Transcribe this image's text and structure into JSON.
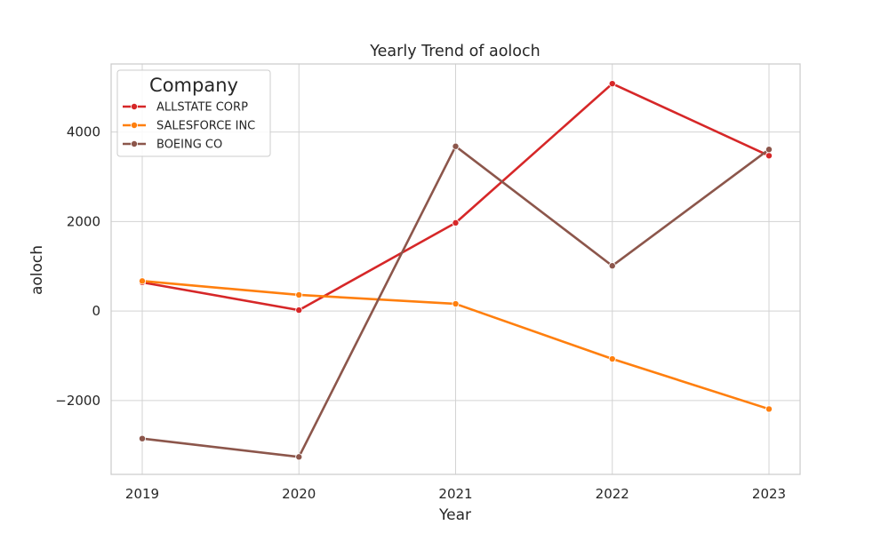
{
  "chart_data": {
    "type": "line",
    "title": "Yearly Trend of aoloch",
    "xlabel": "Year",
    "ylabel": "aoloch",
    "x": [
      2019,
      2020,
      2021,
      2022,
      2023
    ],
    "x_tick_labels": [
      "2019",
      "2020",
      "2021",
      "2022",
      "2023"
    ],
    "y_ticks": [
      -2000,
      0,
      2000,
      4000
    ],
    "y_tick_labels": [
      "−2000",
      "0",
      "2000",
      "4000"
    ],
    "ylim": [
      -3650,
      5520
    ],
    "grid": true,
    "legend": {
      "title": "Company",
      "placement": "top-left"
    },
    "series": [
      {
        "name": "ALLSTATE CORP",
        "color": "#d62728",
        "values": [
          640,
          20,
          1970,
          5080,
          3470
        ]
      },
      {
        "name": "SALESFORCE INC",
        "color": "#ff7f0e",
        "values": [
          670,
          360,
          160,
          -1070,
          -2190
        ]
      },
      {
        "name": "BOEING CO",
        "color": "#8c564b",
        "values": [
          -2850,
          -3260,
          3680,
          1010,
          3610
        ]
      }
    ]
  }
}
